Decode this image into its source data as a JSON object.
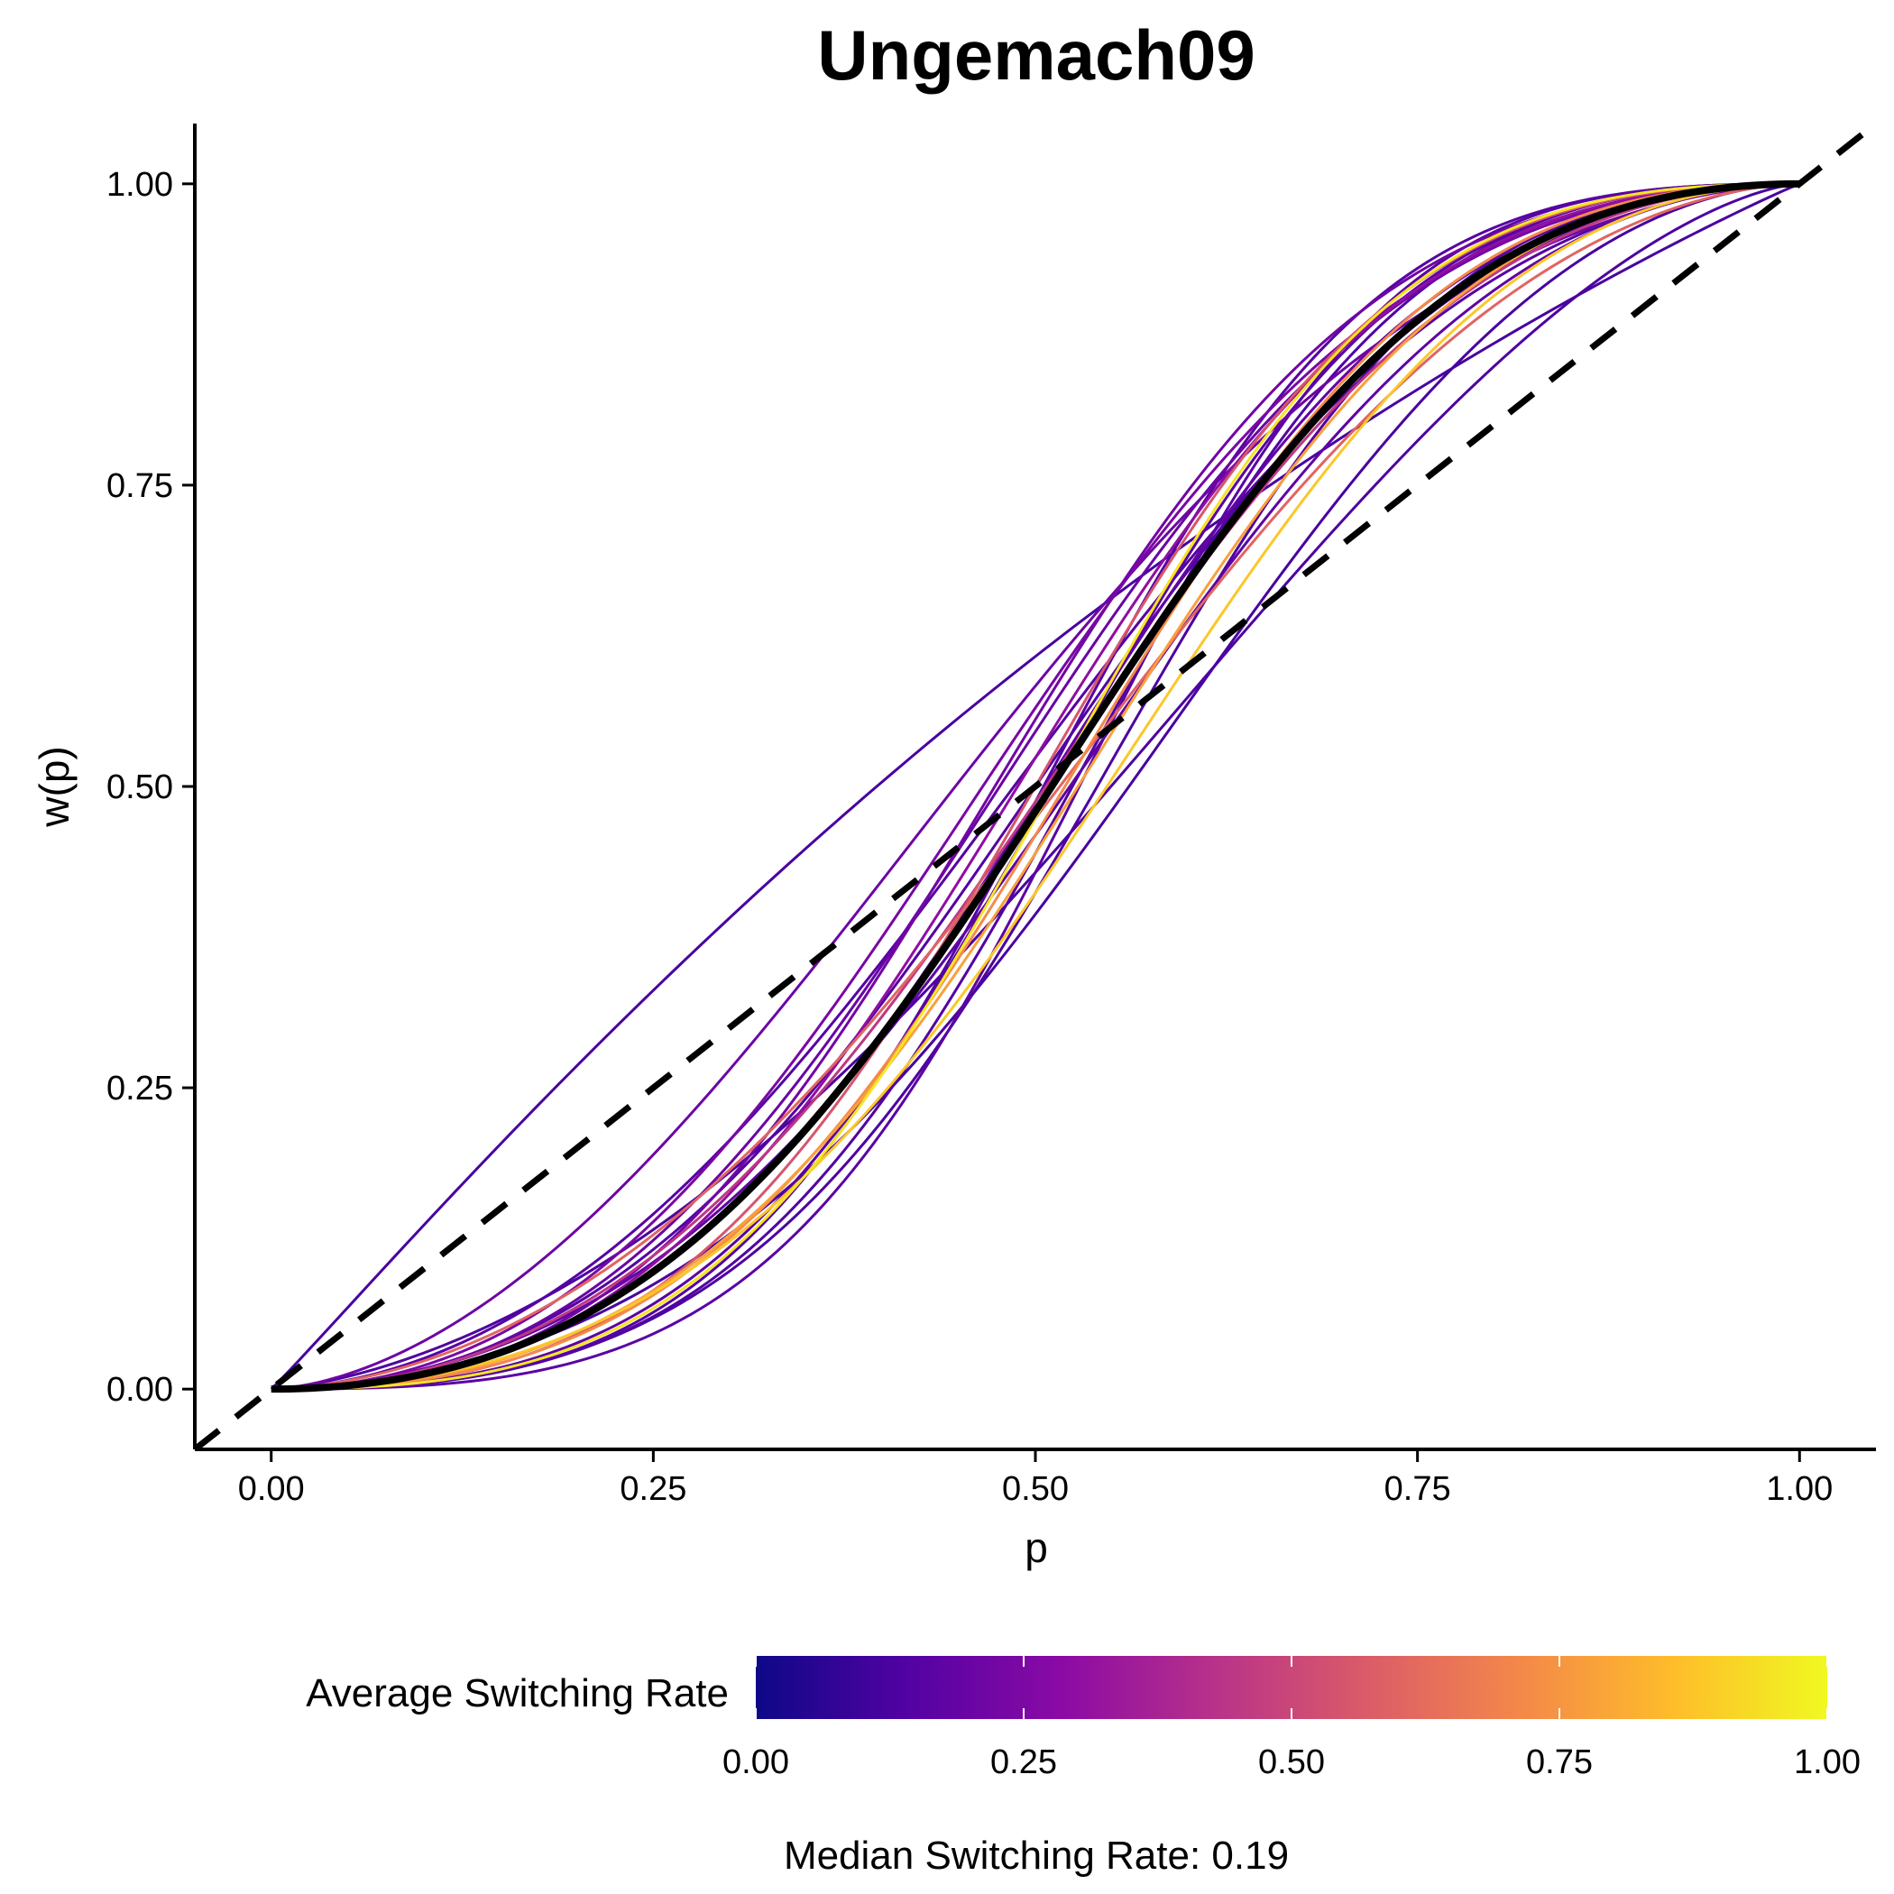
{
  "chart_data": {
    "type": "line",
    "title": "Ungemach09",
    "xlabel": "p",
    "ylabel": "w(p)",
    "xlim": [
      -0.05,
      1.05
    ],
    "ylim": [
      -0.05,
      1.05
    ],
    "x_ticks": [
      "0.00",
      "0.25",
      "0.50",
      "0.75",
      "1.00"
    ],
    "y_ticks": [
      "0.00",
      "0.25",
      "0.50",
      "0.75",
      "1.00"
    ],
    "grid": false,
    "legend": {
      "title": "Average Switching Rate",
      "position": "bottom",
      "ticks": [
        "0.00",
        "0.25",
        "0.50",
        "0.75",
        "1.00"
      ],
      "colormap": [
        "#0d0887",
        "#5302a3",
        "#8b0aa5",
        "#b83289",
        "#db5c68",
        "#f48849",
        "#febd2a",
        "#f0f921"
      ]
    },
    "caption": "Median Switching Rate: 0.19",
    "reference_line": {
      "label": "identity",
      "style": "dashed",
      "color": "#000000"
    },
    "median_curve": {
      "gamma": 1.95,
      "delta": 0.92,
      "color": "#000000"
    },
    "participant_curves": [
      {
        "gamma": 1.04,
        "delta": 1.55,
        "rate": 0.12
      },
      {
        "gamma": 1.45,
        "delta": 0.75,
        "rate": 0.13
      },
      {
        "gamma": 1.7,
        "delta": 1.1,
        "rate": 0.15
      },
      {
        "gamma": 1.8,
        "delta": 0.85,
        "rate": 0.17
      },
      {
        "gamma": 1.85,
        "delta": 1.0,
        "rate": 0.14
      },
      {
        "gamma": 2.0,
        "delta": 0.95,
        "rate": 0.18
      },
      {
        "gamma": 1.95,
        "delta": 1.2,
        "rate": 0.2
      },
      {
        "gamma": 2.1,
        "delta": 1.25,
        "rate": 0.22
      },
      {
        "gamma": 2.25,
        "delta": 0.9,
        "rate": 0.16
      },
      {
        "gamma": 2.3,
        "delta": 0.8,
        "rate": 0.14
      },
      {
        "gamma": 2.4,
        "delta": 0.95,
        "rate": 0.15
      },
      {
        "gamma": 2.2,
        "delta": 0.7,
        "rate": 0.13
      },
      {
        "gamma": 1.6,
        "delta": 1.4,
        "rate": 0.21
      },
      {
        "gamma": 1.75,
        "delta": 0.65,
        "rate": 0.12
      },
      {
        "gamma": 2.5,
        "delta": 0.75,
        "rate": 0.16
      },
      {
        "gamma": 1.9,
        "delta": 1.3,
        "rate": 0.24
      },
      {
        "gamma": 2.05,
        "delta": 1.1,
        "rate": 0.3
      },
      {
        "gamma": 1.85,
        "delta": 0.95,
        "rate": 0.45
      },
      {
        "gamma": 2.2,
        "delta": 1.0,
        "rate": 0.55
      },
      {
        "gamma": 1.65,
        "delta": 0.9,
        "rate": 0.6
      },
      {
        "gamma": 2.1,
        "delta": 0.85,
        "rate": 0.72
      },
      {
        "gamma": 2.0,
        "delta": 0.8,
        "rate": 0.78
      },
      {
        "gamma": 2.3,
        "delta": 0.9,
        "rate": 0.95
      },
      {
        "gamma": 1.9,
        "delta": 0.7,
        "rate": 0.88
      }
    ]
  }
}
